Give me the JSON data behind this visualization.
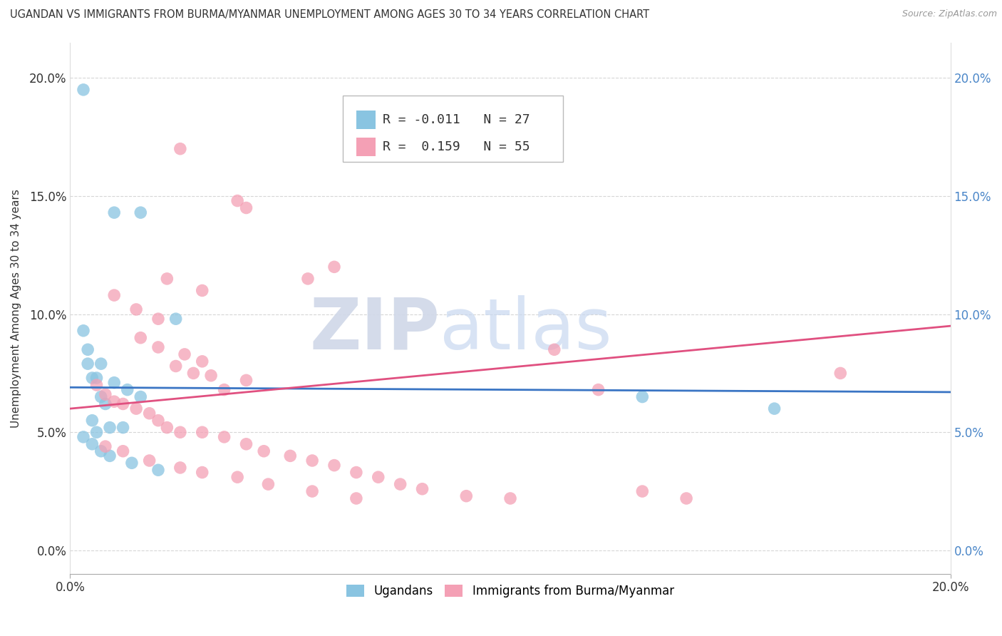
{
  "title": "UGANDAN VS IMMIGRANTS FROM BURMA/MYANMAR UNEMPLOYMENT AMONG AGES 30 TO 34 YEARS CORRELATION CHART",
  "source": "Source: ZipAtlas.com",
  "ylabel": "Unemployment Among Ages 30 to 34 years",
  "xlim": [
    0.0,
    0.2
  ],
  "ylim": [
    -0.01,
    0.215
  ],
  "yticks": [
    0.0,
    0.05,
    0.1,
    0.15,
    0.2
  ],
  "ytick_labels": [
    "0.0%",
    "5.0%",
    "10.0%",
    "15.0%",
    "20.0%"
  ],
  "xtick_labels": [
    "0.0%",
    "20.0%"
  ],
  "legend_labels": [
    "Ugandans",
    "Immigrants from Burma/Myanmar"
  ],
  "blue_R": "-0.011",
  "blue_N": "27",
  "pink_R": "0.159",
  "pink_N": "55",
  "blue_color": "#89c4e1",
  "pink_color": "#f4a0b5",
  "blue_line_color": "#3a75c4",
  "pink_line_color": "#e05080",
  "watermark_zip": "ZIP",
  "watermark_atlas": "atlas",
  "ugandan_points": [
    [
      0.003,
      0.195
    ],
    [
      0.01,
      0.143
    ],
    [
      0.016,
      0.143
    ],
    [
      0.003,
      0.093
    ],
    [
      0.004,
      0.085
    ],
    [
      0.004,
      0.079
    ],
    [
      0.005,
      0.073
    ],
    [
      0.006,
      0.073
    ],
    [
      0.007,
      0.079
    ],
    [
      0.01,
      0.071
    ],
    [
      0.007,
      0.065
    ],
    [
      0.013,
      0.068
    ],
    [
      0.016,
      0.065
    ],
    [
      0.008,
      0.062
    ],
    [
      0.005,
      0.055
    ],
    [
      0.006,
      0.05
    ],
    [
      0.009,
      0.052
    ],
    [
      0.012,
      0.052
    ],
    [
      0.003,
      0.048
    ],
    [
      0.005,
      0.045
    ],
    [
      0.007,
      0.042
    ],
    [
      0.009,
      0.04
    ],
    [
      0.014,
      0.037
    ],
    [
      0.02,
      0.034
    ],
    [
      0.024,
      0.098
    ],
    [
      0.13,
      0.065
    ],
    [
      0.16,
      0.06
    ]
  ],
  "burma_points": [
    [
      0.025,
      0.17
    ],
    [
      0.038,
      0.148
    ],
    [
      0.04,
      0.145
    ],
    [
      0.054,
      0.115
    ],
    [
      0.06,
      0.12
    ],
    [
      0.022,
      0.115
    ],
    [
      0.03,
      0.11
    ],
    [
      0.01,
      0.108
    ],
    [
      0.015,
      0.102
    ],
    [
      0.02,
      0.098
    ],
    [
      0.016,
      0.09
    ],
    [
      0.02,
      0.086
    ],
    [
      0.026,
      0.083
    ],
    [
      0.03,
      0.08
    ],
    [
      0.024,
      0.078
    ],
    [
      0.028,
      0.075
    ],
    [
      0.032,
      0.074
    ],
    [
      0.04,
      0.072
    ],
    [
      0.035,
      0.068
    ],
    [
      0.006,
      0.07
    ],
    [
      0.008,
      0.066
    ],
    [
      0.01,
      0.063
    ],
    [
      0.012,
      0.062
    ],
    [
      0.015,
      0.06
    ],
    [
      0.018,
      0.058
    ],
    [
      0.02,
      0.055
    ],
    [
      0.022,
      0.052
    ],
    [
      0.025,
      0.05
    ],
    [
      0.03,
      0.05
    ],
    [
      0.035,
      0.048
    ],
    [
      0.04,
      0.045
    ],
    [
      0.044,
      0.042
    ],
    [
      0.05,
      0.04
    ],
    [
      0.055,
      0.038
    ],
    [
      0.06,
      0.036
    ],
    [
      0.065,
      0.033
    ],
    [
      0.07,
      0.031
    ],
    [
      0.075,
      0.028
    ],
    [
      0.08,
      0.026
    ],
    [
      0.09,
      0.023
    ],
    [
      0.1,
      0.022
    ],
    [
      0.11,
      0.085
    ],
    [
      0.12,
      0.068
    ],
    [
      0.13,
      0.025
    ],
    [
      0.14,
      0.022
    ],
    [
      0.008,
      0.044
    ],
    [
      0.012,
      0.042
    ],
    [
      0.018,
      0.038
    ],
    [
      0.025,
      0.035
    ],
    [
      0.03,
      0.033
    ],
    [
      0.038,
      0.031
    ],
    [
      0.045,
      0.028
    ],
    [
      0.055,
      0.025
    ],
    [
      0.065,
      0.022
    ],
    [
      0.175,
      0.075
    ]
  ],
  "blue_line": [
    [
      0.0,
      0.069
    ],
    [
      0.2,
      0.067
    ]
  ],
  "pink_line": [
    [
      0.0,
      0.06
    ],
    [
      0.2,
      0.095
    ]
  ]
}
